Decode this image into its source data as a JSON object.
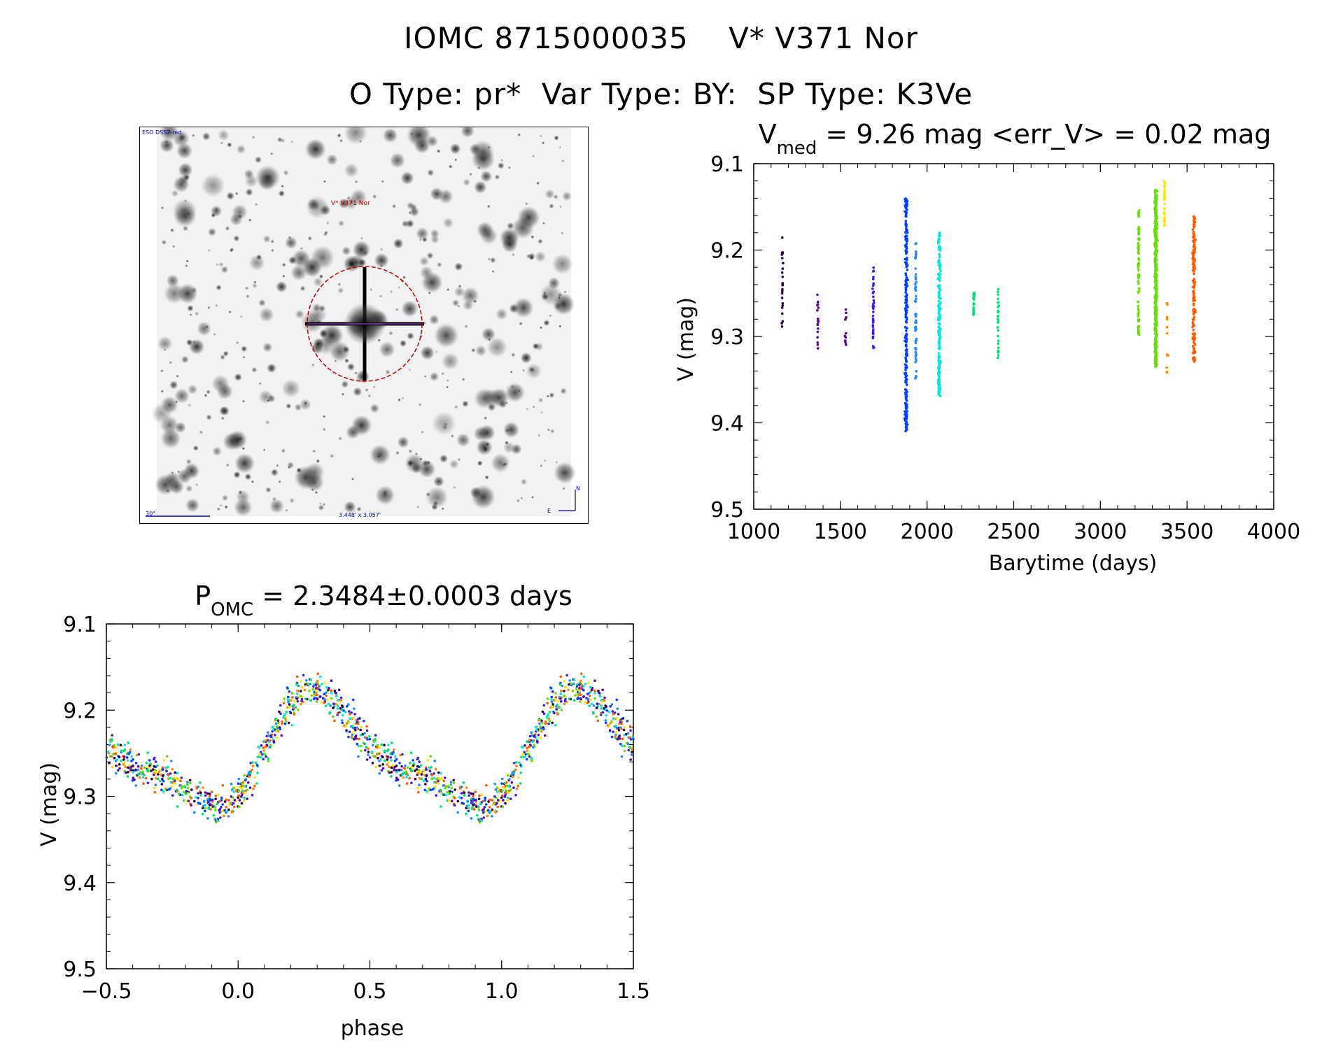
{
  "header": {
    "line1": "IOMC 8715000035    V* V371 Nor",
    "line2": "O Type: pr*  Var Type: BY:  SP Type: K3Ve"
  },
  "image_panel": {
    "survey": "ESO DSS2-red",
    "target": "V* V371 Nor",
    "scale_label": "30\"",
    "fov_label": "3.448' x 3.057'",
    "compass_n": "N",
    "compass_e": "E"
  },
  "colors": {
    "season_colors": [
      "#2a0040",
      "#5b0090",
      "#3a1fe0",
      "#0040ff",
      "#1a8cff",
      "#00e6d8",
      "#00e070",
      "#66e000",
      "#ffe400",
      "#ff8800",
      "#ff5a00"
    ],
    "circle": "#c00000",
    "axis": "#000000"
  },
  "chart_data": [
    {
      "type": "scatter",
      "id": "lightcurve",
      "title_main": "V",
      "title_sub": "med",
      "title_rest": " = 9.26 mag <err_V> = 0.02 mag",
      "xlabel": "Barytime (days)",
      "ylabel": "V (mag)",
      "xlim": [
        1000,
        4000
      ],
      "ylim": [
        9.5,
        9.1
      ],
      "xticks": [
        1000,
        1500,
        2000,
        2500,
        3000,
        3500,
        4000
      ],
      "yticks": [
        9.1,
        9.2,
        9.3,
        9.4,
        9.5
      ],
      "ytick_labels": [
        "9.1",
        "9.2",
        "9.3",
        "9.4",
        "9.5"
      ],
      "seasons": [
        {
          "x": 1165,
          "ymin": 9.17,
          "ymax": 9.31,
          "n": 24,
          "color": 0
        },
        {
          "x": 1370,
          "ymin": 9.245,
          "ymax": 9.315,
          "n": 18,
          "color": 1
        },
        {
          "x": 1530,
          "ymin": 9.265,
          "ymax": 9.31,
          "n": 12,
          "color": 1
        },
        {
          "x": 1690,
          "ymin": 9.22,
          "ymax": 9.315,
          "n": 40,
          "color": 2
        },
        {
          "x": 1880,
          "ymin": 9.14,
          "ymax": 9.41,
          "n": 260,
          "color": 3
        },
        {
          "x": 1935,
          "ymin": 9.19,
          "ymax": 9.35,
          "n": 60,
          "color": 4
        },
        {
          "x": 2070,
          "ymin": 9.18,
          "ymax": 9.37,
          "n": 200,
          "color": 5
        },
        {
          "x": 2270,
          "ymin": 9.245,
          "ymax": 9.275,
          "n": 25,
          "color": 6
        },
        {
          "x": 2410,
          "ymin": 9.245,
          "ymax": 9.325,
          "n": 30,
          "color": 6
        },
        {
          "x": 3220,
          "ymin": 9.15,
          "ymax": 9.3,
          "n": 80,
          "color": 7
        },
        {
          "x": 3320,
          "ymin": 9.13,
          "ymax": 9.335,
          "n": 420,
          "color": 7
        },
        {
          "x": 3370,
          "ymin": 9.12,
          "ymax": 9.175,
          "n": 30,
          "color": 8
        },
        {
          "x": 3385,
          "ymin": 9.26,
          "ymax": 9.345,
          "n": 12,
          "color": 9
        },
        {
          "x": 3540,
          "ymin": 9.16,
          "ymax": 9.33,
          "n": 160,
          "color": 10
        }
      ]
    },
    {
      "type": "scatter",
      "id": "phased",
      "title_main": "P",
      "title_sub": "OMC",
      "title_rest": " = 2.3484±0.0003 days",
      "xlabel": "phase",
      "ylabel": "V (mag)",
      "xlim": [
        -0.5,
        1.5
      ],
      "ylim": [
        9.5,
        9.1
      ],
      "xticks": [
        -0.5,
        0.0,
        0.5,
        1.0,
        1.5
      ],
      "xtick_labels": [
        "−0.5",
        "0.0",
        "0.5",
        "1.0",
        "1.5"
      ],
      "yticks": [
        9.1,
        9.2,
        9.3,
        9.4,
        9.5
      ],
      "ytick_labels": [
        "9.1",
        "9.2",
        "9.3",
        "9.4",
        "9.5"
      ],
      "period_days": 2.3484,
      "mean_mag": 9.25,
      "amplitude_mag": 0.06
    }
  ]
}
